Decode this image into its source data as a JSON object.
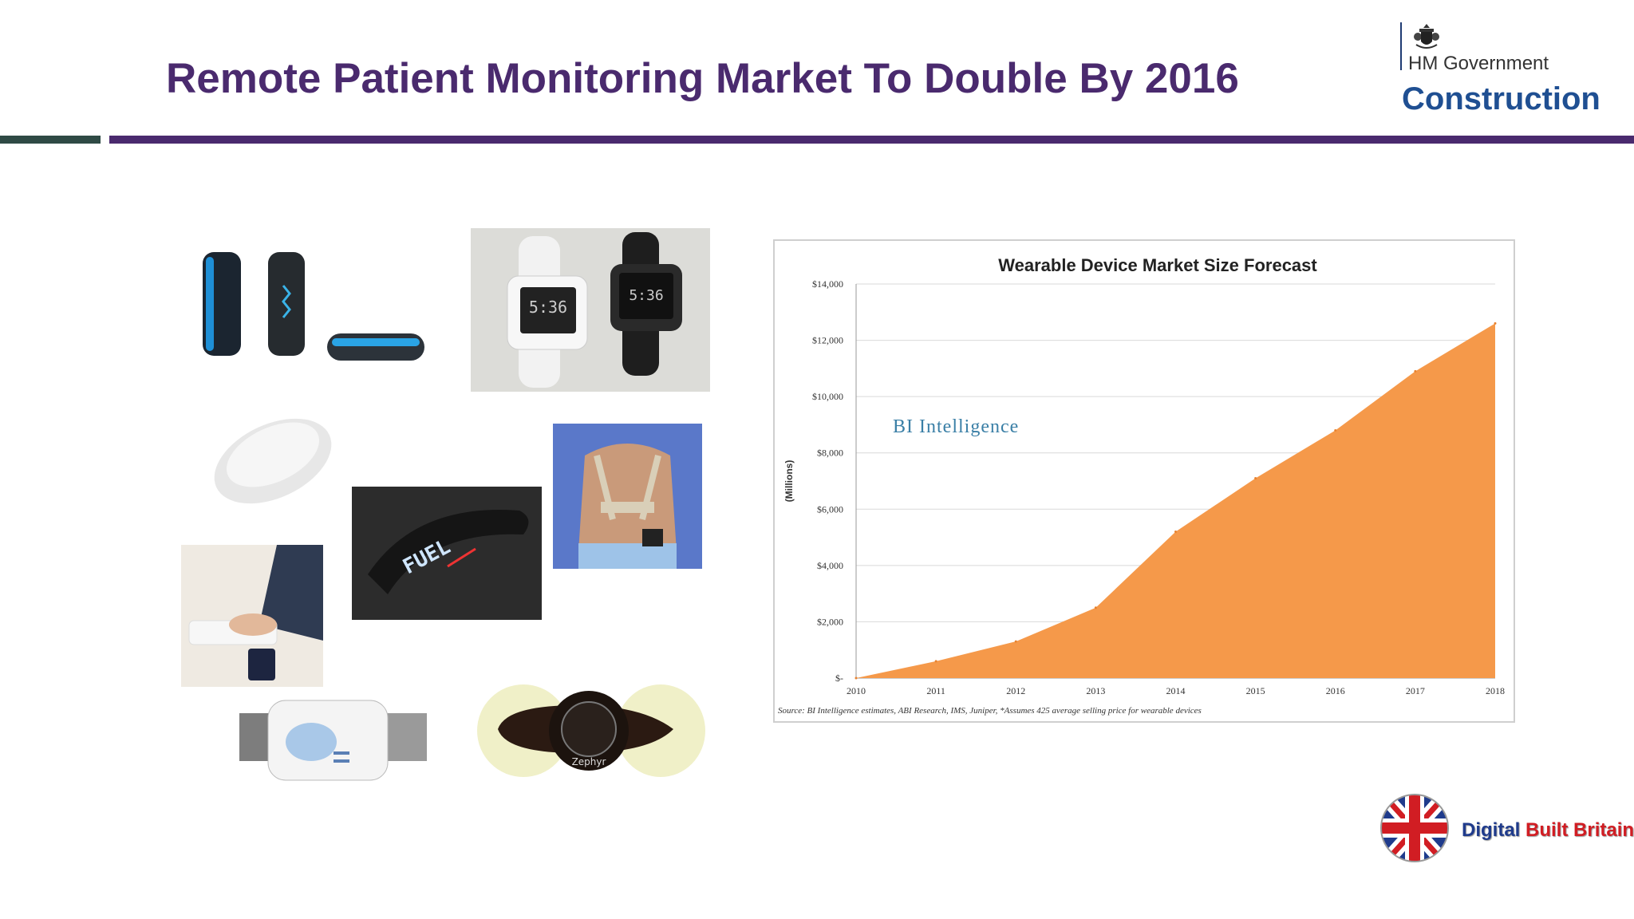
{
  "slide": {
    "title": "Remote Patient Monitoring Market To Double By 2016"
  },
  "hm_government_logo": {
    "line1": "HM Government",
    "line2": "Construction"
  },
  "digital_built_britain_logo": {
    "word1": "Digital",
    "word2": "Built",
    "word3": "Britain"
  },
  "photos": {
    "fuel_band_text": "FUEL",
    "watch_display": "5:36",
    "sensor_brand": "Zephyr"
  },
  "watermark": "BI Intelligence",
  "colors": {
    "title": "#4a2a6e",
    "accent_bar": "#4a2a6e",
    "area_fill": "#f5994a",
    "dark_bar": "#2f4a45"
  },
  "chart_data": {
    "type": "area",
    "title": "Wearable Device Market Size Forecast",
    "xlabel": "",
    "ylabel": "(Millions)",
    "x": [
      "2010",
      "2011",
      "2012",
      "2013",
      "2014",
      "2015",
      "2016",
      "2017",
      "2018"
    ],
    "series": [
      {
        "values": [
          0,
          600,
          1300,
          2500,
          5200,
          7100,
          8800,
          10900,
          12600
        ]
      }
    ],
    "ylim": [
      0,
      14000
    ],
    "y_ticks": [
      "$-",
      "$2,000",
      "$4,000",
      "$6,000",
      "$8,000",
      "$10,000",
      "$12,000",
      "$14,000"
    ],
    "grid": true,
    "legend": "none",
    "source_note": "Source: BI Intelligence estimates, ABI Research, IMS, Juniper, *Assumes 425 average selling price for wearable devices"
  }
}
